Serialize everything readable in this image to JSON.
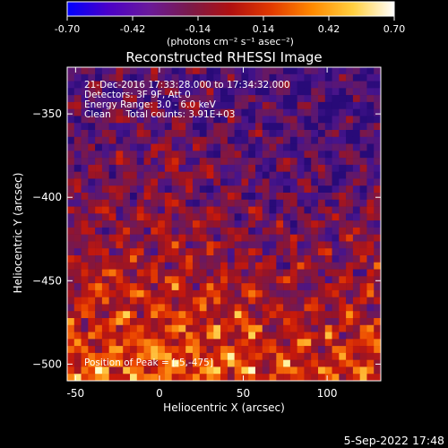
{
  "colorbar": {
    "ticks": [
      "-0.70",
      "-0.42",
      "-0.14",
      "0.14",
      "0.42",
      "0.70"
    ],
    "tick_values": [
      -0.7,
      -0.42,
      -0.14,
      0.14,
      0.42,
      0.7
    ],
    "range": [
      -0.7,
      0.7
    ],
    "unit_label": "(photons cm⁻² s⁻¹ asec⁻²)",
    "colors": [
      "#0000ff",
      "#4b00c8",
      "#6a1a9a",
      "#7a1a4a",
      "#b01010",
      "#e23a00",
      "#ff8a00",
      "#ffd040",
      "#ffffff"
    ]
  },
  "chart_data": {
    "type": "heatmap",
    "title": "Reconstructed RHESSI Image",
    "xlabel": "Heliocentric X (arcsec)",
    "ylabel": "Heliocentric Y (arcsec)",
    "xlim": [
      -55,
      132
    ],
    "ylim": [
      -510,
      -322
    ],
    "xticks": [
      -50,
      0,
      50,
      100
    ],
    "yticks": [
      -350,
      -400,
      -450,
      -500
    ],
    "annotations": [
      "21-Dec-2016 17:33:28.000 to 17:34:32.000",
      "Detectors: 3F 9F, Att 0",
      "Energy Range: 3.0 - 6.0 keV",
      "Clean     Total counts: 3.91E+03"
    ],
    "peak_label": "Position of Peak = [-5,-475]",
    "peak_position": [
      -5,
      -475
    ]
  },
  "footer": {
    "date": "5-Sep-2022 17:48"
  }
}
